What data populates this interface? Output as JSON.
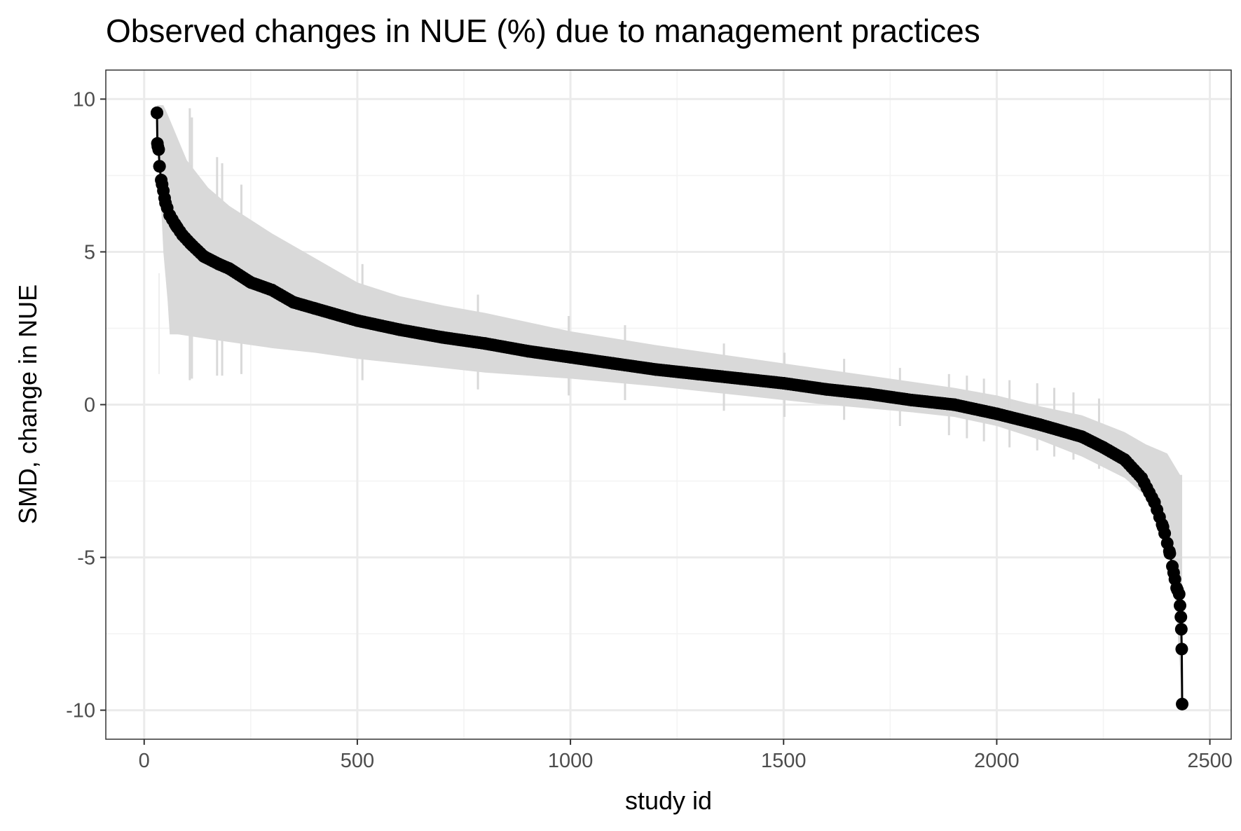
{
  "chart_data": {
    "type": "scatter",
    "title": "Observed changes in NUE (%) due to management practices",
    "xlabel": "study id",
    "ylabel": "SMD, change in NUE",
    "xlim": [
      -90,
      2550
    ],
    "ylim": [
      -10.95,
      10.95
    ],
    "x_ticks": [
      0,
      500,
      1000,
      1500,
      2000,
      2500
    ],
    "x_tick_labels": [
      "0",
      "500",
      "1000",
      "1500",
      "2000",
      "2500"
    ],
    "y_ticks": [
      -10,
      -5,
      0,
      5,
      10
    ],
    "y_tick_labels": [
      "-10",
      "-5",
      "0",
      "5",
      "10"
    ],
    "grid": true,
    "theme": "black-and-white",
    "colors": {
      "points": "#000000",
      "line": "#000000",
      "ci_band": "#d9d9d9",
      "panel_border": "#333333",
      "grid_major": "#ebebeb",
      "grid_minor": "#f3f3f3"
    },
    "n_studies": 2435,
    "x_start": 30,
    "x_end": 2435,
    "series": [
      {
        "kind": "point_estimate_curve",
        "x": [
          30,
          31,
          32,
          34,
          36,
          40,
          45,
          50,
          60,
          75,
          90,
          110,
          140,
          175,
          200,
          250,
          300,
          350,
          400,
          500,
          600,
          700,
          800,
          900,
          1000,
          1100,
          1200,
          1300,
          1400,
          1500,
          1600,
          1700,
          1800,
          1900,
          2000,
          2100,
          2200,
          2250,
          2300,
          2340,
          2370,
          2390,
          2405,
          2415,
          2422,
          2428,
          2432,
          2433,
          2434,
          2435
        ],
        "y": [
          9.55,
          8.55,
          8.45,
          8.35,
          7.8,
          7.35,
          7.0,
          6.6,
          6.2,
          5.85,
          5.55,
          5.25,
          4.85,
          4.6,
          4.45,
          4.0,
          3.75,
          3.35,
          3.15,
          2.75,
          2.45,
          2.2,
          2.0,
          1.75,
          1.55,
          1.35,
          1.15,
          1.0,
          0.85,
          0.7,
          0.5,
          0.35,
          0.15,
          0.0,
          -0.3,
          -0.65,
          -1.05,
          -1.4,
          -1.8,
          -2.4,
          -3.2,
          -4.0,
          -4.8,
          -5.5,
          -6.0,
          -6.2,
          -6.95,
          -7.35,
          -8.0,
          -9.8
        ]
      },
      {
        "kind": "ci_upper",
        "x": [
          30,
          45,
          55,
          70,
          100,
          150,
          200,
          300,
          400,
          500,
          600,
          700,
          800,
          1000,
          1200,
          1400,
          1600,
          1800,
          1900,
          2000,
          2100,
          2200,
          2300,
          2350,
          2400,
          2430,
          2435
        ],
        "y": [
          9.8,
          9.8,
          9.5,
          9.0,
          8.0,
          7.1,
          6.5,
          5.6,
          4.8,
          4.0,
          3.55,
          3.25,
          3.0,
          2.4,
          1.95,
          1.55,
          1.15,
          0.75,
          0.55,
          0.3,
          -0.05,
          -0.35,
          -0.9,
          -1.3,
          -1.6,
          -2.3,
          -2.3
        ]
      },
      {
        "kind": "ci_lower",
        "x": [
          30,
          45,
          55,
          60,
          80,
          150,
          200,
          300,
          400,
          500,
          600,
          700,
          800,
          1000,
          1200,
          1400,
          1600,
          1800,
          1900,
          2000,
          2100,
          2200,
          2300,
          2350,
          2400,
          2420,
          2435
        ],
        "y": [
          9.3,
          5.0,
          3.4,
          2.3,
          2.3,
          2.15,
          2.05,
          1.85,
          1.7,
          1.5,
          1.35,
          1.2,
          1.05,
          0.85,
          0.6,
          0.3,
          0.0,
          -0.25,
          -0.4,
          -0.7,
          -1.15,
          -1.7,
          -2.4,
          -3.0,
          -4.0,
          -6.5,
          -9.8
        ]
      }
    ],
    "error_bar_spikes": [
      {
        "x": 107,
        "low": 0.8,
        "high": 9.7
      },
      {
        "x": 112,
        "low": 0.85,
        "high": 9.4
      },
      {
        "x": 171,
        "low": 0.95,
        "high": 8.1
      },
      {
        "x": 183,
        "low": 0.95,
        "high": 7.9
      },
      {
        "x": 228,
        "low": 1.0,
        "high": 7.2
      },
      {
        "x": 512,
        "low": 0.8,
        "high": 4.6
      },
      {
        "x": 783,
        "low": 0.5,
        "high": 3.6
      },
      {
        "x": 996,
        "low": 0.3,
        "high": 2.9
      },
      {
        "x": 1128,
        "low": 0.15,
        "high": 2.6
      },
      {
        "x": 1360,
        "low": -0.2,
        "high": 2.0
      },
      {
        "x": 1502,
        "low": -0.4,
        "high": 1.7
      },
      {
        "x": 1642,
        "low": -0.5,
        "high": 1.5
      },
      {
        "x": 1773,
        "low": -0.7,
        "high": 1.2
      },
      {
        "x": 1888,
        "low": -1.0,
        "high": 1.0
      },
      {
        "x": 1930,
        "low": -1.1,
        "high": 0.95
      },
      {
        "x": 1970,
        "low": -1.2,
        "high": 0.85
      },
      {
        "x": 2030,
        "low": -1.4,
        "high": 0.8
      },
      {
        "x": 2095,
        "low": -1.5,
        "high": 0.7
      },
      {
        "x": 2135,
        "low": -1.7,
        "high": 0.55
      },
      {
        "x": 2180,
        "low": -1.8,
        "high": 0.4
      },
      {
        "x": 2240,
        "low": -2.1,
        "high": 0.2
      }
    ],
    "faint_left_marks": [
      {
        "x": 30,
        "low": 1.0,
        "high": 4.3
      }
    ]
  }
}
